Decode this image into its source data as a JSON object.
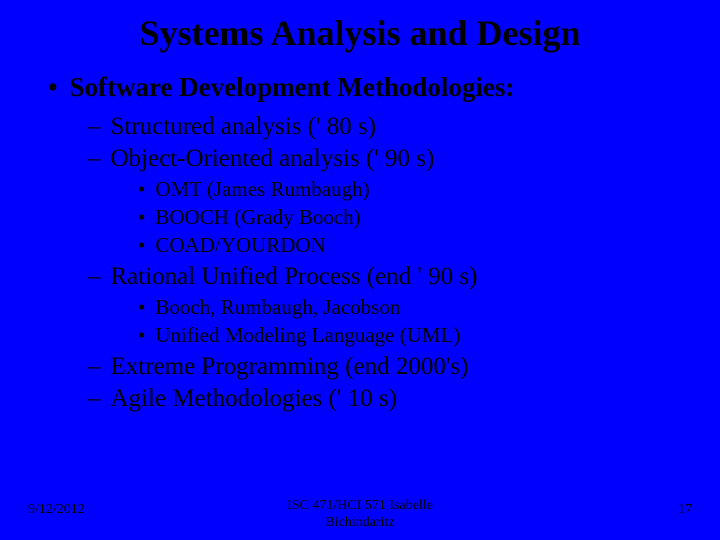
{
  "colors": {
    "background": "#0000ff",
    "text": "#000000"
  },
  "typography": {
    "font_family": "Times New Roman",
    "title_fontsize": 36,
    "title_weight": "bold",
    "level1_fontsize": 27,
    "level1_weight": "bold",
    "level2_fontsize": 25,
    "level2_weight": "normal",
    "level3_fontsize": 21,
    "level3_weight": "normal",
    "footer_fontsize": 14
  },
  "title": "Systems Analysis and Design",
  "level1": {
    "bullet": "•",
    "text": "Software Development Methodologies:"
  },
  "level2": {
    "items": [
      {
        "dash": "–",
        "text": "Structured analysis (' 80 s)"
      },
      {
        "dash": "–",
        "text": "Object-Oriented analysis (' 90 s)"
      },
      {
        "dash": "–",
        "text": "Rational Unified Process (end ' 90 s)"
      },
      {
        "dash": "–",
        "text": "Extreme Programming (end 2000's)"
      },
      {
        "dash": "–",
        "text": "Agile Methodologies (' 10 s)"
      }
    ]
  },
  "level3": {
    "group1": [
      {
        "bullet": "•",
        "text": "OMT (James Rumbaugh)"
      },
      {
        "bullet": "•",
        "text": "BOOCH (Grady Booch)"
      },
      {
        "bullet": "•",
        "text": "COAD/YOURDON"
      }
    ],
    "group2": [
      {
        "bullet": "•",
        "text": "Booch, Rumbaugh, Jacobson"
      },
      {
        "bullet": "•",
        "text": "Unified Modeling Language (UML)"
      }
    ]
  },
  "footer": {
    "date": "9/12/2012",
    "center_line1": "ISC 471/HCI 571   Isabelle",
    "center_line2": "Bichindaritz",
    "page": "17"
  }
}
